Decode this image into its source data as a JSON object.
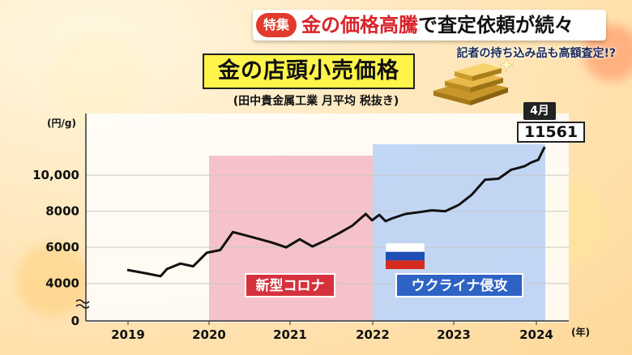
{
  "headline": {
    "badge": "特集",
    "text_red": "金の価格高騰",
    "text_black": "で査定依頼が続々"
  },
  "subhead": "記者の持ち込み品も高額査定!?",
  "chart_title": "金の店頭小売価格",
  "chart_source": "(田中貴金属工業 月平均 税抜き)",
  "callout": {
    "month": "4月",
    "value": "11561"
  },
  "events": {
    "corona": "新型コロナ",
    "ukraine": "ウクライナ侵攻"
  },
  "chart_data": {
    "type": "line",
    "title": "金の店頭小売価格",
    "ylabel": "(円/g)",
    "xlabel": "(年)",
    "y_ticks": [
      {
        "value": 4000,
        "label": "4000"
      },
      {
        "value": 6000,
        "label": "6000"
      },
      {
        "value": 8000,
        "label": "8000"
      },
      {
        "value": 10000,
        "label": "10,000"
      }
    ],
    "y_baseline_label": "0",
    "y_axis_break": true,
    "ylim": [
      3000,
      11800
    ],
    "x_ticks": [
      "2019",
      "2020",
      "2021",
      "2022",
      "2023",
      "2024"
    ],
    "xlim": [
      2019.0,
      2024.33
    ],
    "grid": true,
    "series": [
      {
        "x": [
          2019.0,
          2019.25,
          2019.42,
          2019.5,
          2019.67,
          2019.83,
          2020.0,
          2020.17,
          2020.33,
          2020.5,
          2020.67,
          2020.83,
          2021.0,
          2021.17,
          2021.33,
          2021.5,
          2021.67,
          2021.83,
          2022.0,
          2022.08,
          2022.17,
          2022.25,
          2022.33,
          2022.5,
          2022.67,
          2022.83,
          2023.0,
          2023.17,
          2023.33,
          2023.5,
          2023.67,
          2023.75,
          2023.83,
          2023.92,
          2024.0,
          2024.08,
          2024.17,
          2024.25
        ],
        "y": [
          4750,
          4550,
          4400,
          4800,
          5100,
          4950,
          5700,
          5850,
          6850,
          6650,
          6450,
          6250,
          6000,
          6450,
          6050,
          6400,
          6800,
          7200,
          7850,
          7500,
          7800,
          7450,
          7600,
          7850,
          7950,
          8050,
          8000,
          8350,
          8900,
          9750,
          9800,
          10050,
          10300,
          10400,
          10500,
          10700,
          10850,
          11561
        ]
      }
    ],
    "shaded_regions": [
      {
        "label": "新型コロナ",
        "from": 2020.0,
        "to": 2022.0,
        "color": "#f5b7c2"
      },
      {
        "label": "ウクライナ侵攻",
        "from": 2022.0,
        "to": 2024.25,
        "color": "#b7cff5"
      }
    ],
    "annotation": {
      "text": "11561",
      "month": "4月",
      "x": 2024.25
    }
  }
}
